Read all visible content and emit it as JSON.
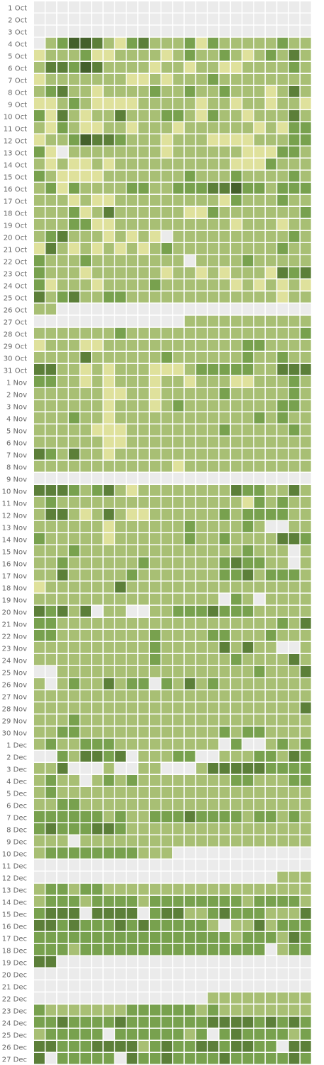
{
  "chart_data": {
    "type": "heatmap",
    "days": [
      "1 Oct",
      "2 Oct",
      "3 Oct",
      "4 Oct",
      "5 Oct",
      "6 Oct",
      "7 Oct",
      "8 Oct",
      "9 Oct",
      "10 Oct",
      "11 Oct",
      "12 Oct",
      "13 Oct",
      "14 Oct",
      "15 Oct",
      "16 Oct",
      "17 Oct",
      "18 Oct",
      "19 Oct",
      "20 Oct",
      "21 Oct",
      "22 Oct",
      "23 Oct",
      "24 Oct",
      "25 Oct",
      "26 Oct",
      "27 Oct",
      "28 Oct",
      "29 Oct",
      "30 Oct",
      "31 Oct",
      "1 Nov",
      "2 Nov",
      "3 Nov",
      "4 Nov",
      "5 Nov",
      "6 Nov",
      "7 Nov",
      "8 Nov",
      "9 Nov",
      "10 Nov",
      "11 Nov",
      "12 Nov",
      "13 Nov",
      "14 Nov",
      "15 Nov",
      "16 Nov",
      "17 Nov",
      "18 Nov",
      "19 Nov",
      "20 Nov",
      "21 Nov",
      "22 Nov",
      "23 Nov",
      "24 Nov",
      "25 Nov",
      "26 Nov",
      "27 Nov",
      "28 Nov",
      "29 Nov",
      "30 Nov",
      "1 Dec",
      "2 Dec",
      "3 Dec",
      "4 Dec",
      "5 Dec",
      "6 Dec",
      "7 Dec",
      "8 Dec",
      "9 Dec",
      "10 Dec",
      "11 Dec",
      "12 Dec",
      "13 Dec",
      "14 Dec",
      "15 Dec",
      "16 Dec",
      "17 Dec",
      "18 Dec",
      "19 Dec",
      "20 Dec",
      "21 Dec",
      "22 Dec",
      "23 Dec",
      "24 Dec",
      "25 Dec",
      "26 Dec",
      "27 Dec"
    ],
    "level_colors": [
      "#ebebeb",
      "#dfe19c",
      "#a8bf74",
      "#78a14e",
      "#5c7f39",
      "#44602b"
    ],
    "levels": [
      "000000000000000000000000",
      "000000000000000000000000",
      "000000000000000000000000",
      "023554213422231322222322",
      "122231122221232232123242",
      "244354222212212211222232",
      "122222221121222322222222",
      "234221222232232232221242",
      "112321111222221221221221",
      "314212242223321322122242",
      "213211221222122222212133",
      "122354432221222111122233",
      "310222222221222222111332",
      "212112122222222221113222",
      "321111222222232223222232",
      "231322223322333445332333",
      "222121122222222213222322",
      "222312422222211322222223",
      "222331122222222221222122",
      "234222121210222222222232",
      "142121212123222222222322",
      "322232222222202222322222",
      "322212222221221212221434",
      "312221222232222221212121",
      "423422332222222222222122",
      "220000000000000000000000",
      "000000000000022222222222",
      "222222232222222222222223",
      "122211222222222222332222",
      "222242222223222222322322",
      "442212122211123333322444",
      "332212122212212221122232",
      "222222112212222232222232",
      "222222122212322222222332",
      "222322122222222222232322",
      "222221112222222232222232",
      "222222112222222222222222",
      "432422122222222222222222",
      "222222222222122222222222",
      "000000000000000000000000",
      "444323421222222224332242",
      "232222222222222222132322",
      "244212421122222232333322",
      "222222122222232222320022",
      "322222122222232232222443",
      "222322222222222222322202",
      "223222222322222234332202",
      "224222223222222233423332",
      "122222242222222222222222",
      "222222222222222203202222",
      "434240220022333433322222",
      "332222222222222222222324",
      "332222222232222332223222",
      "222222222232222242422002",
      "222222222232222223222242",
      "002222222222222222232224",
      "202322423303242322222222",
      "222222222222222222222222",
      "222222222222222222222224",
      "222322222222222222222222",
      "223322222222222232332222",
      "232233322222222203002323",
      "003244340222330022233243",
      "224000200220002444443333",
      "232202323222222223322233",
      "232222222222222222222222",
      "223322222222222222222222",
      "333333232233343333233232",
      "343334432222222222222222",
      "222022222222222222222222",
      "233333333222000000000000",
      "000000000000000000000000",
      "000000000000000000000222",
      "233233222222222222222222",
      "233323333233333333233332",
      "344404444034422343332224",
      "443433343433333202242333",
      "333333333333333332333243",
      "333233333333333333330233",
      "440000000000000000000000",
      "000000000000000000000000",
      "000000000000000000000000",
      "000000000000000222222222",
      "322222223333332322222222",
      "334333343333333444434343",
      "233333033333323034333323",
      "443334444234334434433044",
      "403333304334333343333343"
    ]
  }
}
